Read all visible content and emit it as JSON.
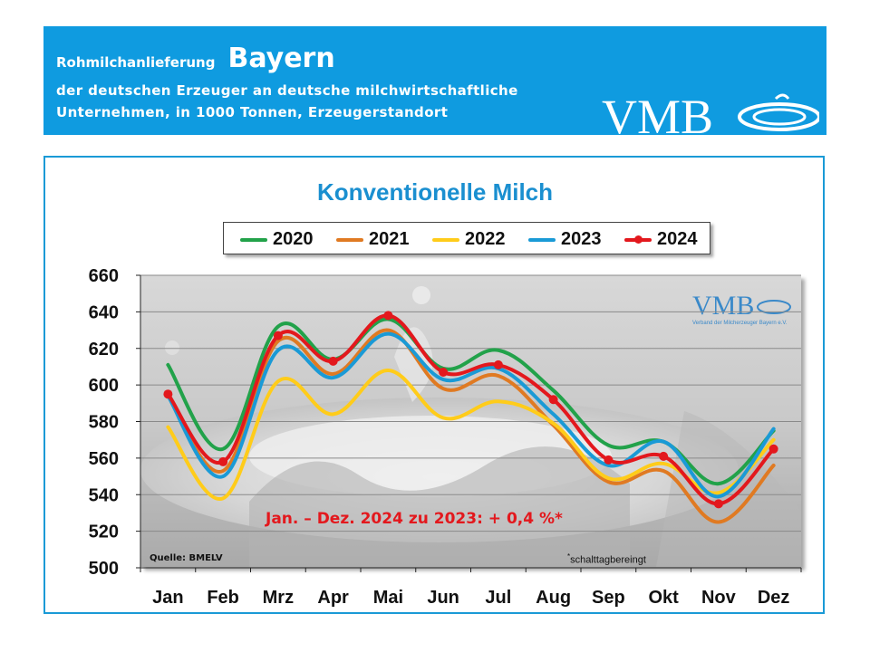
{
  "header": {
    "line1_prefix": "Rohmilchanlieferung",
    "region": "Bayern",
    "line2": "der deutschen Erzeuger an deutsche milchwirtschaftliche",
    "line3": "Unternehmen, in 1000 Tonnen, Erzeugerstandort",
    "logo_text": "VMB"
  },
  "watermark": {
    "logo_text": "VMB",
    "subtitle": "Verband der Milcherzeuger Bayern e.V."
  },
  "colors": {
    "header_bg": "#0f9be0",
    "title": "#1a8fd0",
    "annotation": "#e3181d"
  },
  "chart_data": {
    "type": "line",
    "title": "Konventionelle Milch",
    "xlabel": "",
    "ylabel": "",
    "categories": [
      "Jan",
      "Feb",
      "Mrz",
      "Apr",
      "Mai",
      "Jun",
      "Jul",
      "Aug",
      "Sep",
      "Okt",
      "Nov",
      "Dez"
    ],
    "ylim": [
      500,
      660
    ],
    "yticks": [
      500,
      520,
      540,
      560,
      580,
      600,
      620,
      640,
      660
    ],
    "grid": true,
    "legend_position": "top",
    "series": [
      {
        "name": "2020",
        "color": "#22a24a",
        "markers": false,
        "values": [
          611,
          565,
          632,
          614,
          636,
          609,
          619,
          597,
          567,
          569,
          546,
          575
        ]
      },
      {
        "name": "2021",
        "color": "#e07a22",
        "markers": false,
        "values": [
          594,
          553,
          624,
          606,
          630,
          598,
          605,
          578,
          547,
          553,
          525,
          556
        ]
      },
      {
        "name": "2022",
        "color": "#ffcc1a",
        "markers": false,
        "values": [
          577,
          538,
          602,
          584,
          608,
          582,
          591,
          579,
          549,
          557,
          541,
          570
        ]
      },
      {
        "name": "2023",
        "color": "#1a9ad6",
        "markers": false,
        "values": [
          594,
          550,
          619,
          604,
          628,
          603,
          609,
          584,
          556,
          569,
          539,
          576
        ]
      },
      {
        "name": "2024",
        "color": "#e3181d",
        "markers": true,
        "values": [
          595,
          558,
          627,
          613,
          638,
          607,
          611,
          592,
          559,
          561,
          535,
          565
        ]
      }
    ],
    "annotation": "Jan. – Dez. 2024 zu 2023: + 0,4 %*",
    "source": "Quelle:  BMELV",
    "footnote_mark": "*",
    "footnote": "schalttagbereingt"
  }
}
